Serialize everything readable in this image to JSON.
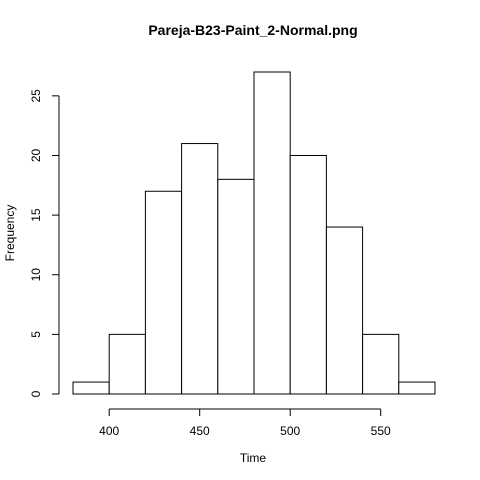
{
  "chart_data": {
    "type": "bar",
    "title": "Pareja-B23-Paint_2-Normal.png",
    "xlabel": "Time",
    "ylabel": "Frequency",
    "bins": [
      {
        "start": 380,
        "end": 400,
        "count": 1
      },
      {
        "start": 400,
        "end": 420,
        "count": 5
      },
      {
        "start": 420,
        "end": 440,
        "count": 17
      },
      {
        "start": 440,
        "end": 460,
        "count": 21
      },
      {
        "start": 460,
        "end": 480,
        "count": 18
      },
      {
        "start": 480,
        "end": 500,
        "count": 27
      },
      {
        "start": 500,
        "end": 520,
        "count": 20
      },
      {
        "start": 520,
        "end": 540,
        "count": 14
      },
      {
        "start": 540,
        "end": 560,
        "count": 5
      },
      {
        "start": 560,
        "end": 580,
        "count": 1
      }
    ],
    "xlim": [
      380,
      580
    ],
    "ylim": [
      0,
      27
    ],
    "xticks": [
      400,
      450,
      500,
      550
    ],
    "yticks": [
      0,
      5,
      10,
      15,
      20,
      25
    ],
    "grid": false,
    "legend": "none"
  }
}
